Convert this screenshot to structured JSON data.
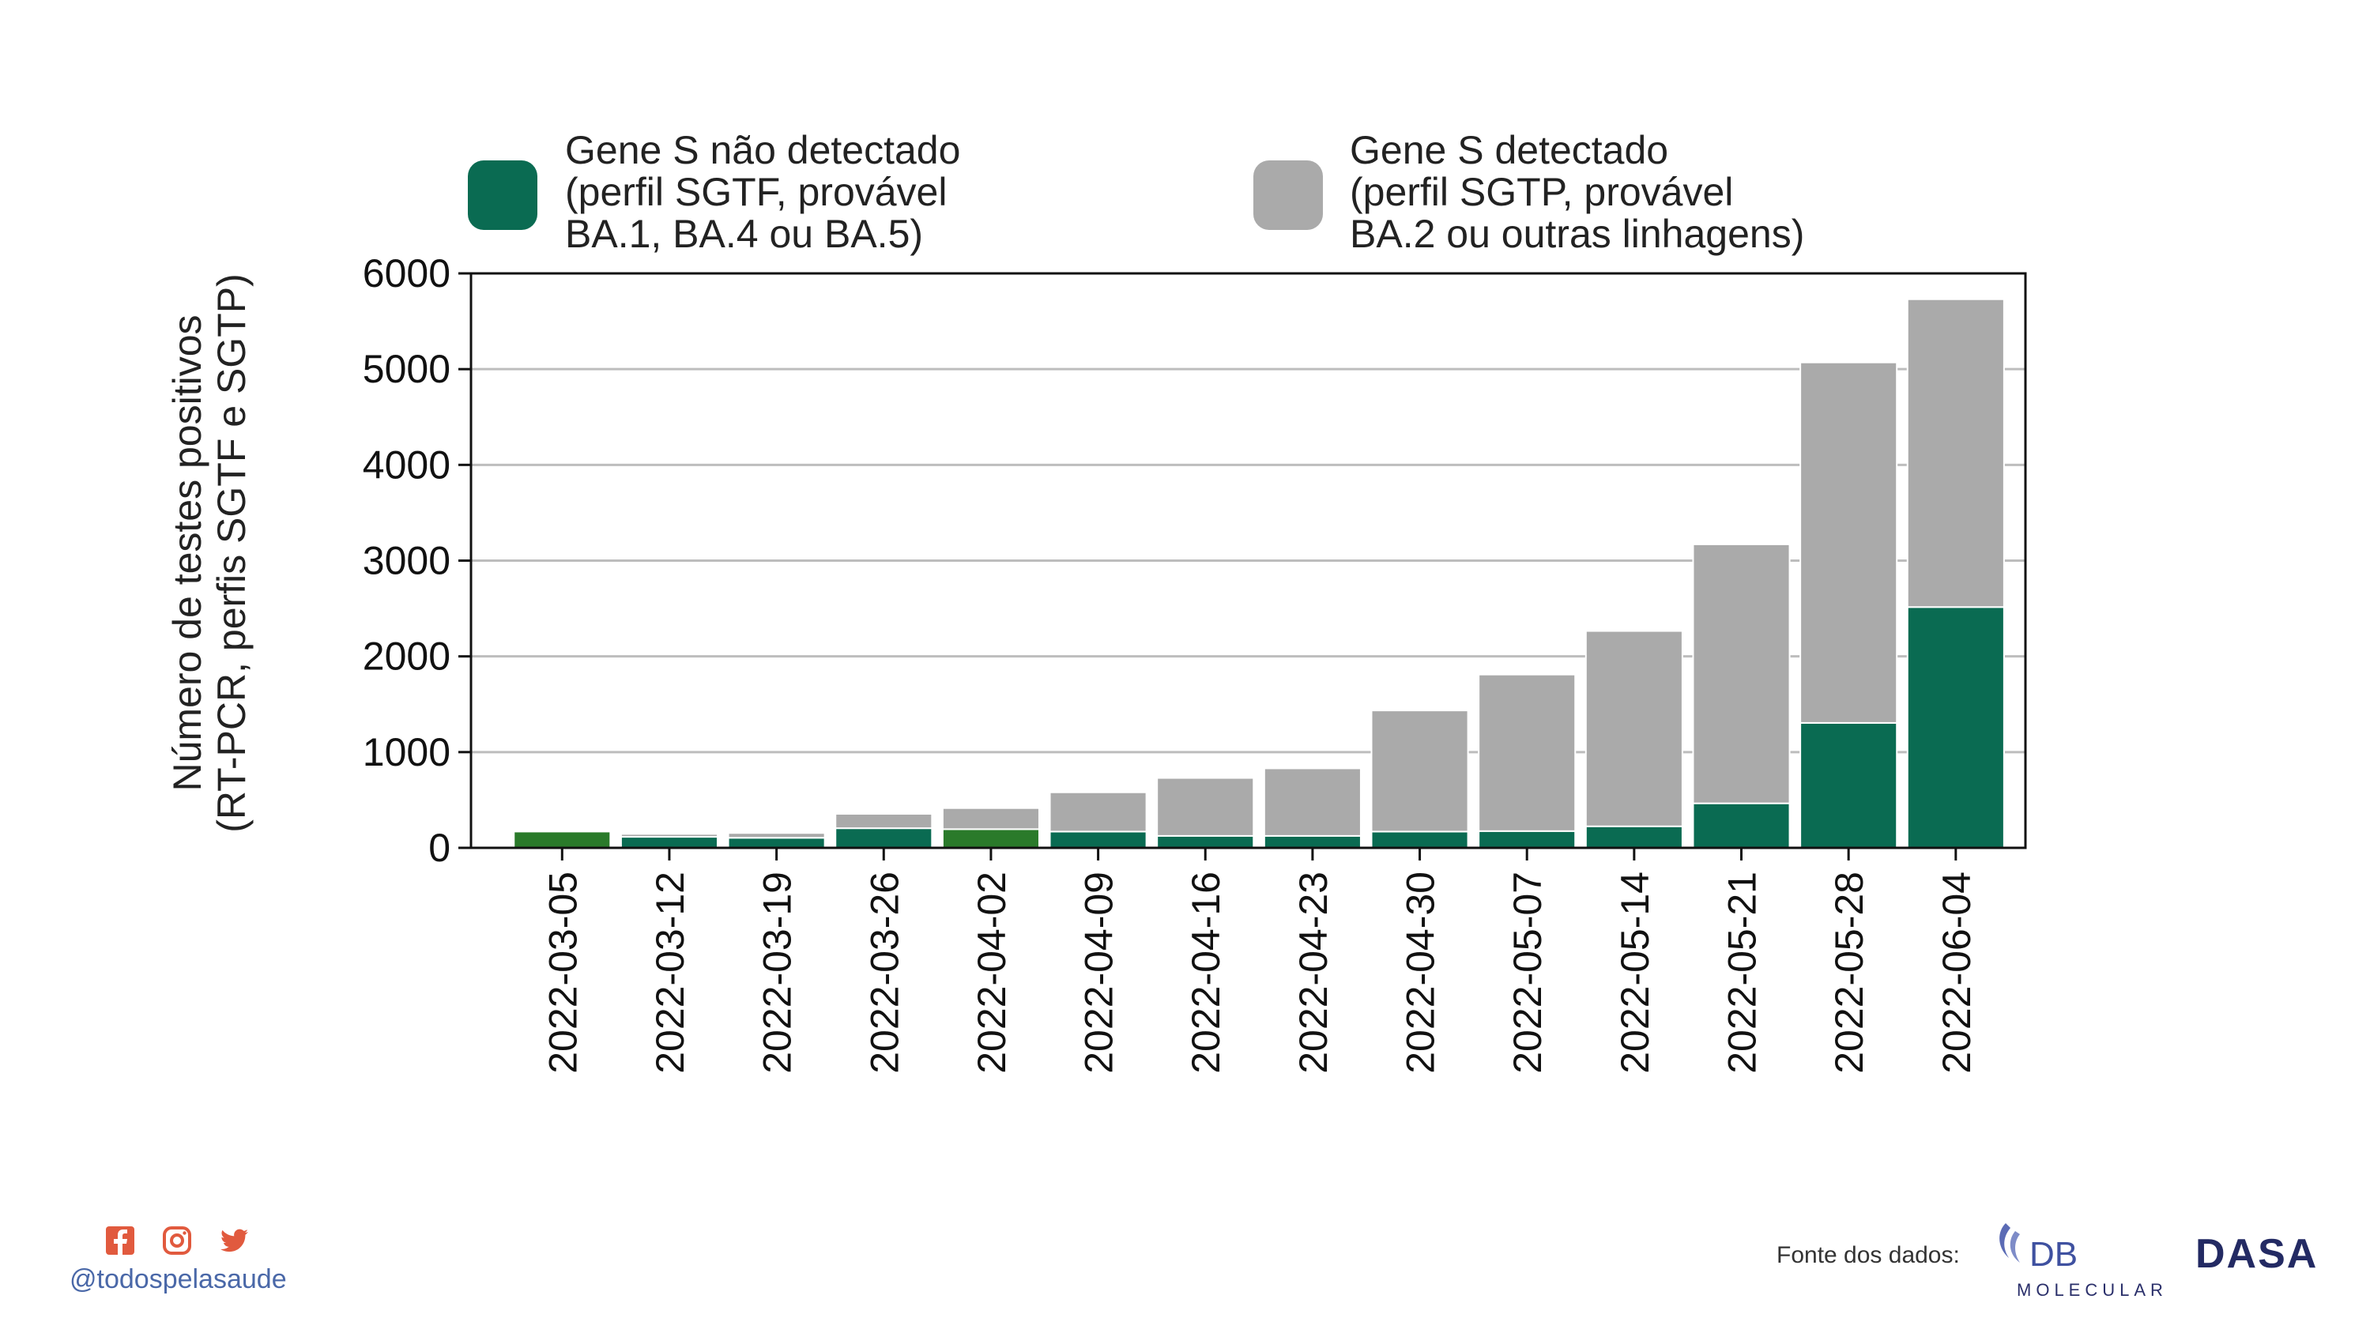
{
  "chart_data": {
    "type": "bar",
    "stacked": true,
    "categories": [
      "2022-03-05",
      "2022-03-12",
      "2022-03-19",
      "2022-03-26",
      "2022-04-02",
      "2022-04-09",
      "2022-04-16",
      "2022-04-23",
      "2022-04-30",
      "2022-05-07",
      "2022-05-14",
      "2022-05-21",
      "2022-05-28",
      "2022-06-04"
    ],
    "series": [
      {
        "name": "Gene S não detectado\n(perfil SGTF, provável\nBA.1, BA.4 ou BA.5)",
        "color": "#0a6b52",
        "values": [
          170,
          115,
          105,
          205,
          195,
          170,
          125,
          125,
          170,
          175,
          225,
          465,
          1305,
          2515
        ]
      },
      {
        "name": "Gene S detectado\n(perfil SGTP, provável\nBA.2 ou outras linhagens)",
        "color": "#aaaaaa",
        "values": [
          0,
          30,
          50,
          150,
          220,
          410,
          605,
          705,
          1265,
          1635,
          2040,
          2705,
          3765,
          3215
        ]
      }
    ],
    "highlight_color": "#2a7a2a",
    "ylabel": "Número de testes positivos\n(RT-PCR, perfis SGTF e SGTP)",
    "xlabel": "",
    "title": "",
    "ylim": [
      0,
      6000
    ],
    "yticks": [
      0,
      1000,
      2000,
      3000,
      4000,
      5000,
      6000
    ],
    "grid": "y",
    "legend_position": "top"
  },
  "footer": {
    "handle": "@todospelasaude",
    "source_label": "Fonte dos dados:",
    "db_logo_line1": "DB",
    "db_logo_line2": "MOLECULAR",
    "dasa_logo": "DASA",
    "social_icons": [
      "facebook-icon",
      "instagram-icon",
      "twitter-icon"
    ],
    "icon_color": "#e15a3e"
  }
}
